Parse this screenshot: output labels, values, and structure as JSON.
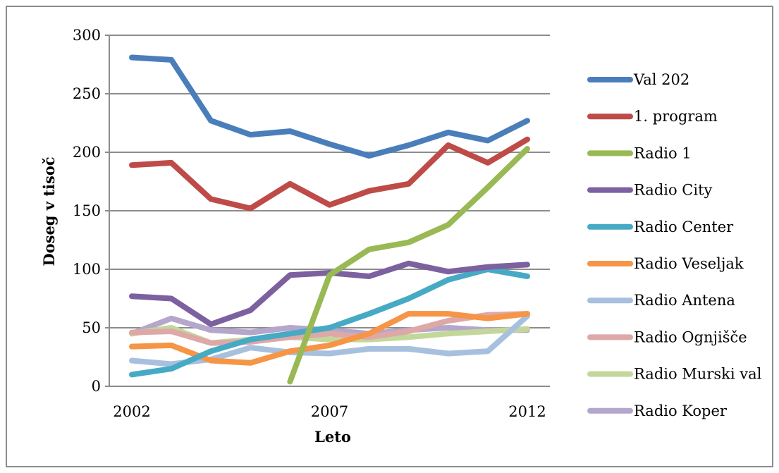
{
  "chart_data": {
    "type": "line",
    "xlabel": "Leto",
    "ylabel": "Doseg v tisoč",
    "x": [
      2002,
      2003,
      2004,
      2005,
      2006,
      2007,
      2008,
      2009,
      2010,
      2011,
      2012
    ],
    "xticks": [
      2002,
      2007,
      2012
    ],
    "ylim": [
      0,
      300
    ],
    "yticks": [
      0,
      50,
      100,
      150,
      200,
      250,
      300
    ],
    "grid": "horizontal",
    "legend_position": "right",
    "series": [
      {
        "name": "Val 202",
        "color": "#4a7ebb",
        "values": [
          281,
          279,
          227,
          215,
          218,
          207,
          197,
          206,
          217,
          210,
          227
        ]
      },
      {
        "name": "1. program",
        "color": "#be4b48",
        "values": [
          189,
          191,
          160,
          152,
          173,
          155,
          167,
          173,
          206,
          191,
          211
        ]
      },
      {
        "name": "Radio 1",
        "color": "#98b954",
        "values": [
          null,
          null,
          null,
          null,
          4,
          95,
          117,
          123,
          138,
          170,
          203
        ]
      },
      {
        "name": "Radio City",
        "color": "#7d60a0",
        "values": [
          77,
          75,
          53,
          65,
          95,
          97,
          94,
          105,
          98,
          102,
          104
        ]
      },
      {
        "name": "Radio Center",
        "color": "#46aac5",
        "values": [
          10,
          15,
          30,
          40,
          45,
          50,
          62,
          75,
          91,
          100,
          94
        ]
      },
      {
        "name": "Radio Veseljak",
        "color": "#f69546",
        "values": [
          34,
          35,
          22,
          20,
          30,
          35,
          45,
          62,
          62,
          58,
          62
        ]
      },
      {
        "name": "Radio Antena",
        "color": "#a7c0de",
        "values": [
          22,
          19,
          23,
          33,
          29,
          28,
          32,
          32,
          28,
          30,
          60
        ]
      },
      {
        "name": "Radio Ognjišče",
        "color": "#dea8a7",
        "values": [
          46,
          47,
          37,
          38,
          42,
          45,
          42,
          47,
          56,
          61,
          62
        ]
      },
      {
        "name": "Radio Murski val",
        "color": "#c4d79b",
        "values": [
          45,
          50,
          37,
          40,
          42,
          40,
          40,
          42,
          45,
          47,
          49
        ]
      },
      {
        "name": "Radio Koper",
        "color": "#b5a6cb",
        "values": [
          45,
          58,
          48,
          46,
          50,
          48,
          45,
          48,
          50,
          48,
          48
        ]
      }
    ]
  }
}
